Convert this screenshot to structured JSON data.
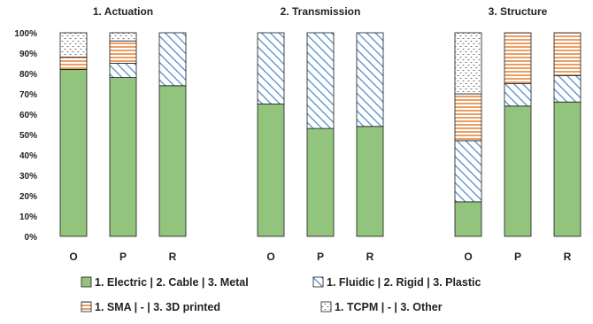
{
  "chart_data": {
    "type": "bar",
    "stacked": true,
    "ylim": [
      0,
      100
    ],
    "yticks": [
      "0%",
      "10%",
      "20%",
      "30%",
      "40%",
      "50%",
      "60%",
      "70%",
      "80%",
      "90%",
      "100%"
    ],
    "grid": false,
    "legend_position": "bottom",
    "panels": [
      {
        "title": "1. Actuation",
        "categories": [
          "O",
          "P",
          "R"
        ],
        "values": [
          [
            82,
            0,
            6,
            12
          ],
          [
            78,
            7,
            11,
            4
          ],
          [
            74,
            26,
            0,
            0
          ]
        ]
      },
      {
        "title": "2. Transmission",
        "categories": [
          "O",
          "P",
          "R"
        ],
        "values": [
          [
            65,
            35,
            0,
            0
          ],
          [
            53,
            47,
            0,
            0
          ],
          [
            54,
            46,
            0,
            0
          ]
        ]
      },
      {
        "title": "3. Structure",
        "categories": [
          "O",
          "P",
          "R"
        ],
        "values": [
          [
            17,
            30,
            23,
            30
          ],
          [
            64,
            11,
            25,
            0
          ],
          [
            66,
            13,
            21,
            0
          ]
        ]
      }
    ],
    "series": [
      {
        "name": "1. Electric | 2. Cable | 3. Metal",
        "pattern": "solid",
        "color": "#93c47d"
      },
      {
        "name": "1. Fluidic | 2. Rigid | 3. Plastic",
        "pattern": "diagonal",
        "color": "#4a86c8"
      },
      {
        "name": "1. SMA | - | 3. 3D printed",
        "pattern": "horizontal",
        "color": "#e6873c"
      },
      {
        "name": "1. TCPM | - | 3. Other",
        "pattern": "dots",
        "color": "#555555"
      }
    ]
  }
}
